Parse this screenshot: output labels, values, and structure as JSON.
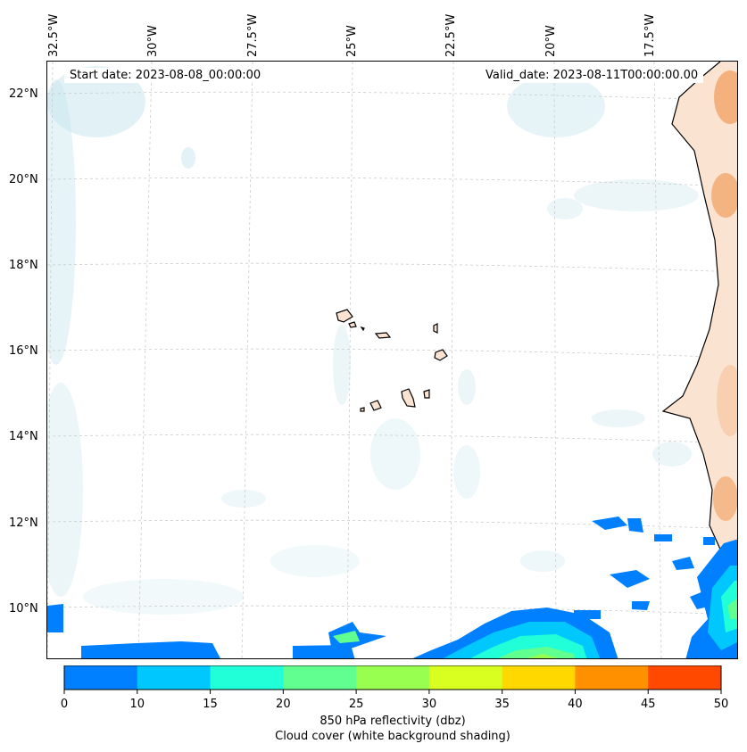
{
  "map": {
    "start_date": "Start date: 2023-08-08_00:00:00",
    "valid_date": "Valid_date: 2023-08-11T00:00:00.00",
    "longitude_labels": [
      "32.5°W",
      "30°W",
      "27.5°W",
      "25°W",
      "22.5°W",
      "20°W",
      "17.5°W"
    ],
    "latitude_labels": [
      "22°N",
      "20°N",
      "18°N",
      "16°N",
      "14°N",
      "12°N",
      "10°N"
    ]
  },
  "colorbar": {
    "ticks": [
      "0",
      "10",
      "15",
      "20",
      "25",
      "30",
      "35",
      "40",
      "45",
      "50"
    ],
    "colors": [
      "#0080ff",
      "#00c8ff",
      "#20ffd8",
      "#60ff90",
      "#98ff50",
      "#d8ff20",
      "#ffd800",
      "#ff9000",
      "#ff4800"
    ],
    "label_line1": "850 hPa reflectivity (dbz)",
    "label_line2": "Cloud cover (white background shading)"
  },
  "colors": {
    "cloud": "#c8e6ef",
    "land": "#f7c9a8",
    "land_dark": "#f2a86e",
    "coast": "#000000",
    "grid": "#cccccc"
  }
}
